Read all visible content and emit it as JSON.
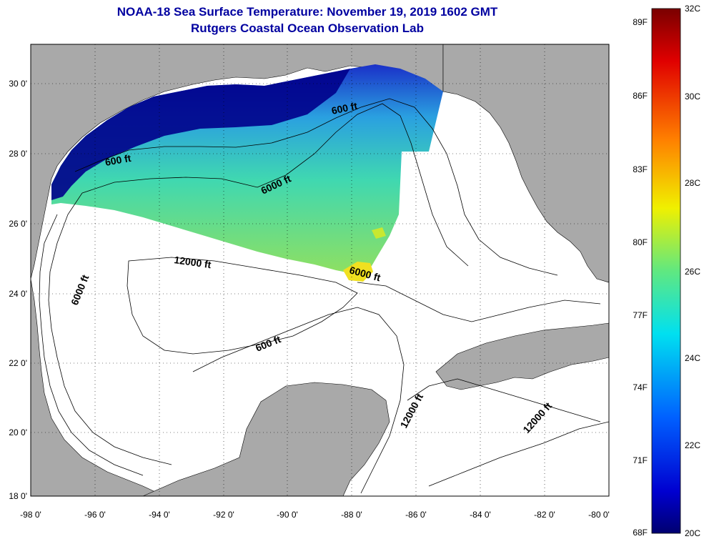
{
  "title": "NOAA-18 Sea Surface Temperature:  November 19, 2019 1602 GMT",
  "subtitle": "Rutgers Coastal Ocean Observation Lab",
  "lon_ticks": [
    "-98 0'",
    "-96 0'",
    "-94 0'",
    "-92 0'",
    "-90 0'",
    "-88 0'",
    "-86 0'",
    "-84 0'",
    "-82 0'",
    "-80 0'"
  ],
  "lat_ticks": [
    "18 0'",
    "20 0'",
    "22 0'",
    "24 0'",
    "26 0'",
    "28 0'",
    "30 0'"
  ],
  "contour_labels": [
    {
      "id": "c1",
      "text": "600 ft"
    },
    {
      "id": "c2",
      "text": "600 ft"
    },
    {
      "id": "c3",
      "text": "6000 ft"
    },
    {
      "id": "c4",
      "text": "12000 ft"
    },
    {
      "id": "c5",
      "text": "6000 ft"
    },
    {
      "id": "c6",
      "text": "6000 ft"
    },
    {
      "id": "c7",
      "text": "600 ft"
    },
    {
      "id": "c8",
      "text": "12000 ft"
    },
    {
      "id": "c9",
      "text": "12000 ft"
    }
  ],
  "colorbar": {
    "fahrenheit": [
      "89F",
      "86F",
      "83F",
      "80F",
      "77F",
      "74F",
      "71F",
      "68F"
    ],
    "celsius": [
      "32C",
      "30C",
      "28C",
      "26C",
      "24C",
      "22C",
      "20C"
    ]
  },
  "colors": {
    "land": "#a9a9a9",
    "water": "#ffffff",
    "title": "#0000a0",
    "sst_cold": "#00008b",
    "sst_mid": "#48e0a0",
    "sst_warm": "#f0e020"
  }
}
